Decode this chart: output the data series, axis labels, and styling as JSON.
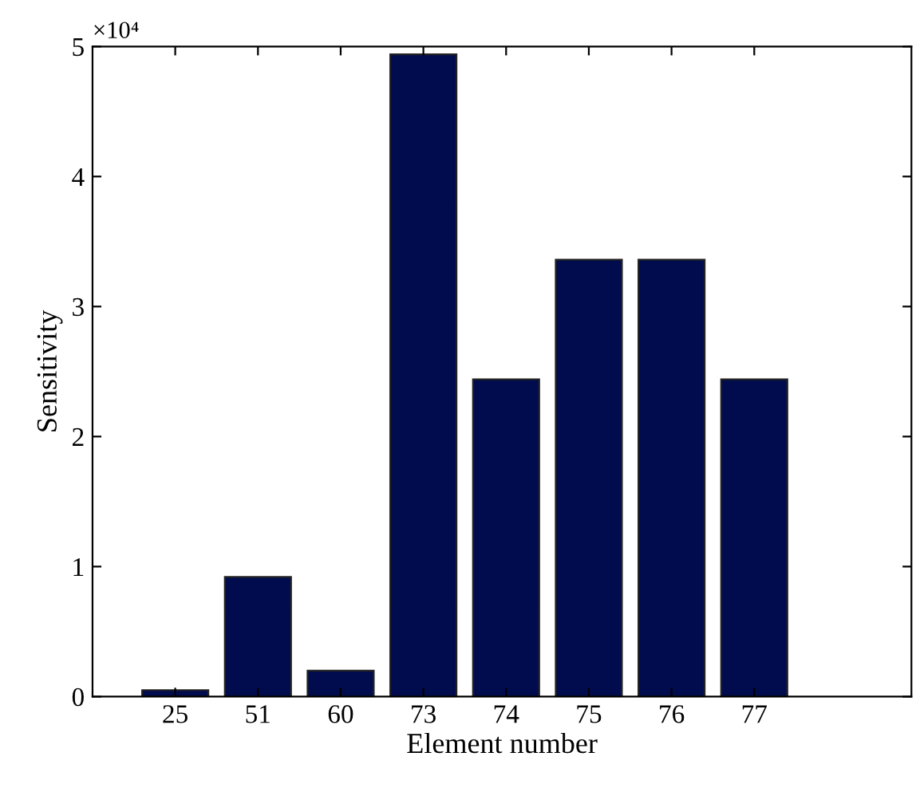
{
  "chart_data": {
    "type": "bar",
    "xlabel": "Element number",
    "ylabel": "Sensitivity",
    "categories": [
      "25",
      "51",
      "60",
      "73",
      "74",
      "75",
      "76",
      "77"
    ],
    "values": [
      0.05,
      0.92,
      0.2,
      4.94,
      2.44,
      3.36,
      3.36,
      2.44
    ],
    "color": "#000c4e",
    "ylim": [
      0,
      5
    ],
    "yticks": [
      0,
      1,
      2,
      3,
      4,
      5
    ],
    "annotations": [
      "×10⁴"
    ],
    "grid": false
  }
}
